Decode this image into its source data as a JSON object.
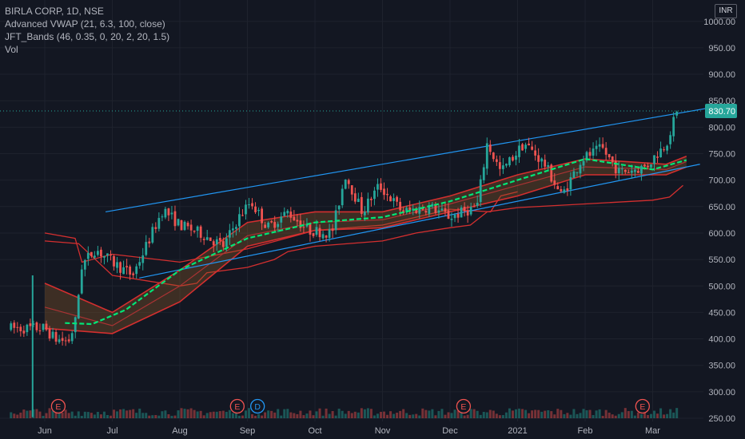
{
  "header": {
    "symbol_line": "BIRLA CORP, 1D, NSE",
    "indicator_1": "Advanced VWAP (21, 6.3, 100, close)",
    "indicator_2": "JFT_Bands (46, 0.35, 0, 20, 2, 20, 1.5)",
    "indicator_3": "Vol",
    "currency": "INR"
  },
  "colors": {
    "background": "#131722",
    "grid": "#1e222d",
    "up": "#26a69a",
    "down": "#ef5350",
    "trendline": "#2196f3",
    "band": "#d32f2f",
    "vwap": "#00e676",
    "price_label": "#26a69a"
  },
  "chart_data": {
    "type": "candlestick",
    "title": "BIRLA CORP, 1D, NSE",
    "x_tick_labels": [
      "Jun",
      "Jul",
      "Aug",
      "Sep",
      "Oct",
      "Nov",
      "Dec",
      "2021",
      "Feb",
      "Mar"
    ],
    "y_tick_labels": [
      "250.00",
      "300.00",
      "350.00",
      "400.00",
      "450.00",
      "500.00",
      "550.00",
      "600.00",
      "650.00",
      "700.00",
      "750.00",
      "800.00",
      "850.00",
      "900.00",
      "950.00",
      "1000.00"
    ],
    "ylim": [
      250,
      1000
    ],
    "current_price": 830.7,
    "current_price_label": "830.70",
    "price_anchors": [
      {
        "month": 0.0,
        "value": 420
      },
      {
        "month": 0.15,
        "value": 400
      },
      {
        "month": 0.35,
        "value": 395
      },
      {
        "month": 0.45,
        "value": 430
      },
      {
        "month": 0.55,
        "value": 540
      },
      {
        "month": 0.75,
        "value": 570
      },
      {
        "month": 1.0,
        "value": 545
      },
      {
        "month": 1.3,
        "value": 520
      },
      {
        "month": 1.5,
        "value": 575
      },
      {
        "month": 1.75,
        "value": 645
      },
      {
        "month": 2.0,
        "value": 615
      },
      {
        "month": 2.3,
        "value": 600
      },
      {
        "month": 2.65,
        "value": 575
      },
      {
        "month": 2.85,
        "value": 625
      },
      {
        "month": 3.05,
        "value": 660
      },
      {
        "month": 3.3,
        "value": 610
      },
      {
        "month": 3.6,
        "value": 640
      },
      {
        "month": 3.9,
        "value": 605
      },
      {
        "month": 4.25,
        "value": 600
      },
      {
        "month": 4.45,
        "value": 710
      },
      {
        "month": 4.7,
        "value": 640
      },
      {
        "month": 4.95,
        "value": 690
      },
      {
        "month": 5.3,
        "value": 640
      },
      {
        "month": 5.7,
        "value": 650
      },
      {
        "month": 6.0,
        "value": 630
      },
      {
        "month": 6.4,
        "value": 650
      },
      {
        "month": 6.55,
        "value": 770
      },
      {
        "month": 6.75,
        "value": 715
      },
      {
        "month": 7.1,
        "value": 770
      },
      {
        "month": 7.4,
        "value": 730
      },
      {
        "month": 7.65,
        "value": 670
      },
      {
        "month": 7.95,
        "value": 740
      },
      {
        "month": 8.25,
        "value": 760
      },
      {
        "month": 8.5,
        "value": 715
      },
      {
        "month": 8.9,
        "value": 725
      },
      {
        "month": 9.2,
        "value": 770
      },
      {
        "month": 9.35,
        "value": 825
      }
    ],
    "trend_upper": [
      {
        "month": 0.9,
        "value": 640
      },
      {
        "month": 10.0,
        "value": 840
      }
    ],
    "trend_lower": [
      {
        "month": 1.4,
        "value": 515
      },
      {
        "month": 9.7,
        "value": 730
      }
    ],
    "bands": {
      "upper": [
        {
          "month": 0.0,
          "value": 505
        },
        {
          "month": 1.0,
          "value": 450
        },
        {
          "month": 2.0,
          "value": 530
        },
        {
          "month": 3.0,
          "value": 620
        },
        {
          "month": 4.0,
          "value": 640
        },
        {
          "month": 5.0,
          "value": 640
        },
        {
          "month": 6.0,
          "value": 670
        },
        {
          "month": 7.0,
          "value": 710
        },
        {
          "month": 8.0,
          "value": 740
        },
        {
          "month": 9.2,
          "value": 730
        },
        {
          "month": 9.5,
          "value": 745
        }
      ],
      "middle": [
        {
          "month": 0.0,
          "value": 460
        },
        {
          "month": 1.0,
          "value": 425
        },
        {
          "month": 2.0,
          "value": 500
        },
        {
          "month": 3.0,
          "value": 595
        },
        {
          "month": 4.0,
          "value": 620
        },
        {
          "month": 5.0,
          "value": 625
        },
        {
          "month": 6.0,
          "value": 655
        },
        {
          "month": 7.0,
          "value": 690
        },
        {
          "month": 8.0,
          "value": 725
        },
        {
          "month": 9.2,
          "value": 720
        },
        {
          "month": 9.5,
          "value": 735
        }
      ],
      "lower": [
        {
          "month": 0.0,
          "value": 420
        },
        {
          "month": 1.0,
          "value": 410
        },
        {
          "month": 2.0,
          "value": 470
        },
        {
          "month": 3.0,
          "value": 575
        },
        {
          "month": 4.0,
          "value": 605
        },
        {
          "month": 5.0,
          "value": 610
        },
        {
          "month": 6.0,
          "value": 640
        },
        {
          "month": 7.0,
          "value": 670
        },
        {
          "month": 8.0,
          "value": 710
        },
        {
          "month": 9.2,
          "value": 710
        },
        {
          "month": 9.5,
          "value": 725
        }
      ],
      "outer_upper": [
        {
          "month": 0.0,
          "value": 600
        },
        {
          "month": 0.45,
          "value": 590
        },
        {
          "month": 0.55,
          "value": 545
        },
        {
          "month": 1.0,
          "value": 560
        },
        {
          "month": 2.0,
          "value": 545
        },
        {
          "month": 3.0,
          "value": 570
        },
        {
          "month": 4.0,
          "value": 605
        },
        {
          "month": 5.0,
          "value": 615
        },
        {
          "month": 6.0,
          "value": 645
        },
        {
          "month": 6.6,
          "value": 640
        },
        {
          "month": 6.75,
          "value": 670
        },
        {
          "month": 7.0,
          "value": 678
        }
      ]
    },
    "outer_lower": [
      {
        "month": 0.0,
        "value": 585
      },
      {
        "month": 0.5,
        "value": 580
      },
      {
        "month": 1.0,
        "value": 520
      },
      {
        "month": 2.0,
        "value": 500
      },
      {
        "month": 2.25,
        "value": 505
      },
      {
        "month": 2.4,
        "value": 525
      },
      {
        "month": 3.0,
        "value": 535
      },
      {
        "month": 3.4,
        "value": 550
      },
      {
        "month": 3.6,
        "value": 565
      },
      {
        "month": 4.0,
        "value": 575
      },
      {
        "month": 5.0,
        "value": 585
      },
      {
        "month": 5.5,
        "value": 600
      },
      {
        "month": 6.0,
        "value": 610
      },
      {
        "month": 6.3,
        "value": 615
      },
      {
        "month": 6.55,
        "value": 640
      },
      {
        "month": 7.0,
        "value": 648
      },
      {
        "month": 8.0,
        "value": 655
      },
      {
        "month": 9.0,
        "value": 662
      },
      {
        "month": 9.25,
        "value": 668
      },
      {
        "month": 9.45,
        "value": 690
      }
    ],
    "vwap": [
      {
        "month": 0.3,
        "value": 430
      },
      {
        "month": 0.7,
        "value": 428
      },
      {
        "month": 1.2,
        "value": 455
      },
      {
        "month": 2.0,
        "value": 530
      },
      {
        "month": 3.0,
        "value": 590
      },
      {
        "month": 4.0,
        "value": 620
      },
      {
        "month": 5.0,
        "value": 630
      },
      {
        "month": 6.0,
        "value": 660
      },
      {
        "month": 7.0,
        "value": 700
      },
      {
        "month": 8.0,
        "value": 740
      },
      {
        "month": 9.0,
        "value": 720
      },
      {
        "month": 9.5,
        "value": 738
      }
    ],
    "events": [
      {
        "label": "E",
        "month": 0.2
      },
      {
        "label": "E",
        "month": 2.85
      },
      {
        "label": "D",
        "month": 3.15
      },
      {
        "label": "E",
        "month": 6.2
      },
      {
        "label": "E",
        "month": 8.85
      }
    ]
  }
}
